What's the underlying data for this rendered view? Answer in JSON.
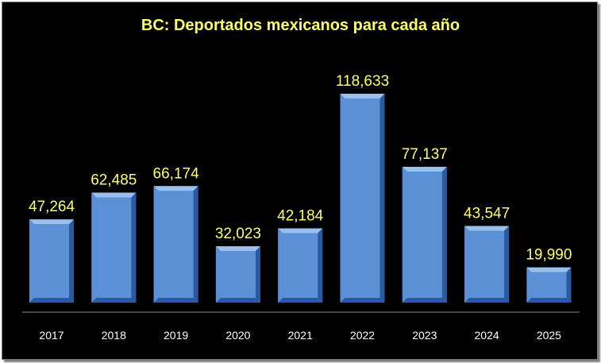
{
  "chart_data": {
    "type": "bar",
    "title": "BC: Deportados mexicanos para cada año",
    "categories": [
      "2017",
      "2018",
      "2019",
      "2020",
      "2021",
      "2022",
      "2023",
      "2024",
      "2025"
    ],
    "values": [
      47264,
      62485,
      66174,
      32023,
      42184,
      118633,
      77137,
      43547,
      19990
    ],
    "value_labels": [
      "47,264",
      "62,485",
      "66,174",
      "32,023",
      "42,184",
      "118,633",
      "77,137",
      "43,547",
      "19,990"
    ],
    "xlabel": "",
    "ylabel": "",
    "ylim": [
      0,
      118633
    ],
    "grid": false,
    "legend": "none",
    "colors": {
      "background": "#000000",
      "bar_face": "#5b8fd6",
      "bar_light": "#9cc0ee",
      "bar_dark": "#2c5aa0",
      "bar_mid": "#4677c2",
      "title": "#ffff66",
      "data_label": "#ffff66",
      "tick_label": "#ffffff",
      "axis": "#8c8c8c"
    }
  }
}
